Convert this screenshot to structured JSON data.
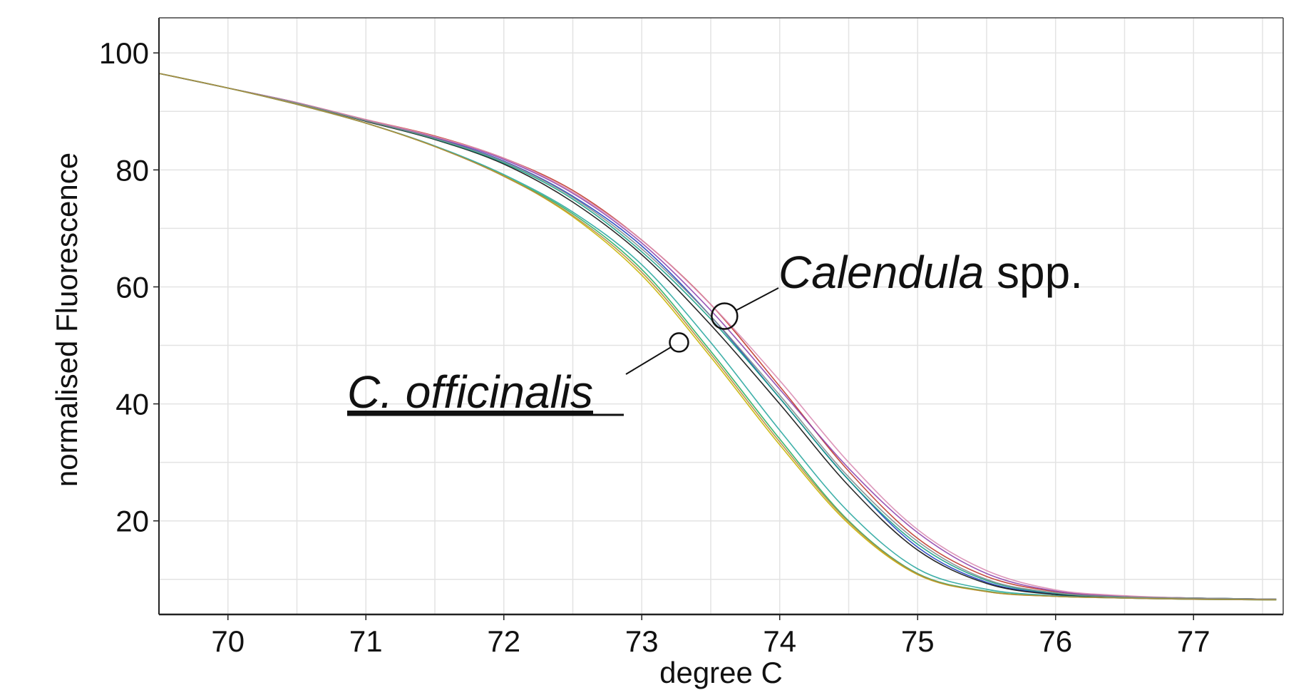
{
  "chart_data": {
    "type": "line",
    "title": "",
    "xlabel": "degree C",
    "ylabel": "normalised Fluorescence",
    "xlim": [
      69.5,
      77.65
    ],
    "ylim": [
      4,
      106
    ],
    "x_ticks": [
      70,
      71,
      72,
      73,
      74,
      75,
      76,
      77
    ],
    "x_tick_labels": [
      "70",
      "71",
      "72",
      "73",
      "74",
      "75",
      "76",
      "77"
    ],
    "y_ticks": [
      20,
      40,
      60,
      80,
      100
    ],
    "y_tick_labels": [
      "20",
      "40",
      "60",
      "80",
      "100"
    ],
    "grid": true,
    "legend": "none",
    "annotations": [
      {
        "italic": "Calendula",
        "plain": " spp.",
        "points_to": {
          "x": 73.6,
          "y": 55
        }
      },
      {
        "italic": "C. officinalis",
        "plain": "",
        "underline": true,
        "points_to": {
          "x": 73.27,
          "y": 50.5
        }
      }
    ],
    "x": [
      69.5,
      70.0,
      70.5,
      71.0,
      71.5,
      72.0,
      72.5,
      73.0,
      73.5,
      74.0,
      74.5,
      75.0,
      75.5,
      76.0,
      76.5,
      77.0,
      77.6
    ],
    "series": [
      {
        "group": "Calendula spp.",
        "color": "#1f3fbf",
        "values": [
          96.5,
          94,
          91.5,
          88.5,
          85.5,
          81.5,
          75.5,
          67,
          55,
          41,
          27,
          15.5,
          9.5,
          7.5,
          7.0,
          6.8,
          6.6
        ]
      },
      {
        "group": "Calendula spp.",
        "color": "#c0392b",
        "values": [
          96.5,
          94,
          91.5,
          88.6,
          85.8,
          82,
          76.5,
          68,
          57,
          43,
          28.5,
          17,
          10.5,
          7.9,
          7.1,
          6.8,
          6.6
        ]
      },
      {
        "group": "Calendula spp.",
        "color": "#8e44ad",
        "values": [
          96.5,
          94,
          91.5,
          88.5,
          85.6,
          81.8,
          76,
          67.5,
          56,
          42.5,
          29,
          18,
          11,
          8.0,
          7.1,
          6.8,
          6.6
        ]
      },
      {
        "group": "Calendula spp.",
        "color": "#111111",
        "values": [
          96.5,
          94,
          91.4,
          88.3,
          85.2,
          81,
          74.5,
          65.5,
          53.5,
          40,
          26,
          15,
          9.3,
          7.4,
          7.0,
          6.8,
          6.6
        ]
      },
      {
        "group": "Calendula spp.",
        "color": "#16a085",
        "values": [
          96.5,
          94,
          91.4,
          88.4,
          85.3,
          81.2,
          75,
          66,
          54.5,
          41,
          27,
          16,
          9.8,
          7.6,
          7.0,
          6.8,
          6.6
        ]
      },
      {
        "group": "Calendula spp.",
        "color": "#d98cb3",
        "values": [
          96.5,
          94,
          91.5,
          88.6,
          85.7,
          82,
          76.2,
          68,
          57,
          44,
          30,
          18.5,
          11.5,
          8.2,
          7.2,
          6.8,
          6.6
        ]
      },
      {
        "group": "Calendula spp.",
        "color": "#7f8c8d",
        "values": [
          96.5,
          94,
          91.4,
          88.4,
          85.4,
          81.4,
          75.3,
          66.5,
          55,
          41.5,
          27.5,
          16.5,
          10,
          7.7,
          7.0,
          6.8,
          6.6
        ]
      },
      {
        "group": "C. officinalis",
        "color": "#27ae60",
        "values": [
          96.5,
          94,
          91.2,
          88,
          84,
          79,
          72.5,
          63,
          49,
          34,
          20,
          11,
          8,
          7.1,
          6.8,
          6.6,
          6.5
        ]
      },
      {
        "group": "C. officinalis",
        "color": "#c8b400",
        "values": [
          96.5,
          94,
          91.2,
          88,
          84,
          79,
          72,
          62,
          48,
          33,
          19.5,
          10.8,
          7.9,
          7.1,
          6.8,
          6.6,
          6.5
        ]
      },
      {
        "group": "C. officinalis",
        "color": "#2aa7a0",
        "values": [
          96.5,
          94,
          91.2,
          88,
          84.1,
          79.2,
          72.8,
          63.8,
          50.5,
          35.5,
          21.5,
          11.8,
          8.3,
          7.2,
          6.8,
          6.6,
          6.5
        ]
      },
      {
        "group": "C. officinalis",
        "color": "#b5893c",
        "values": [
          96.5,
          94,
          91.2,
          88,
          84,
          78.9,
          72.2,
          62.5,
          48.5,
          33.5,
          19.8,
          10.9,
          7.9,
          7.1,
          6.8,
          6.6,
          6.5
        ]
      }
    ]
  }
}
